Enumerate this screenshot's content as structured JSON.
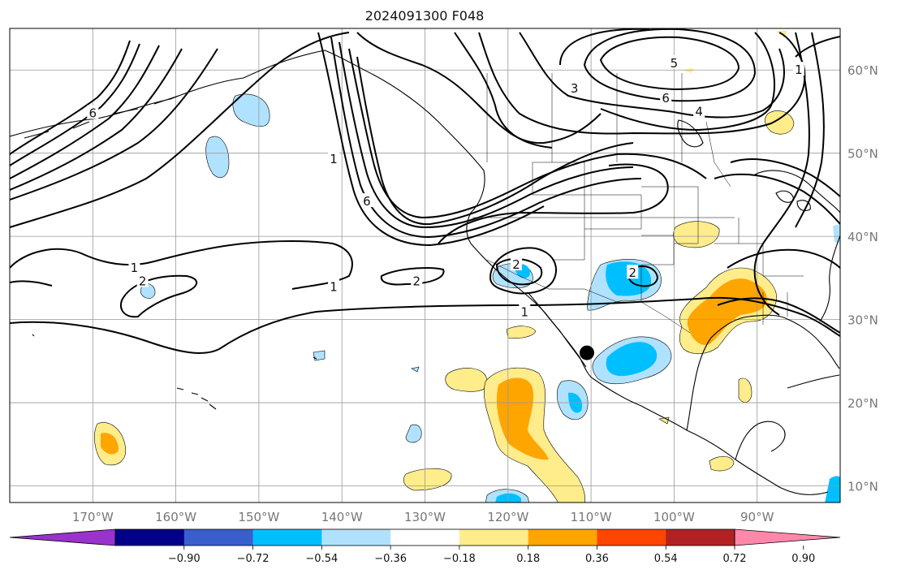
{
  "title": "2024091300 F048",
  "map": {
    "projection": "PlateCarree",
    "lon_range": [
      -180,
      -80
    ],
    "lat_range": [
      8,
      65
    ],
    "lon_ticks": [
      {
        "lon": -170,
        "label": "170°W"
      },
      {
        "lon": -160,
        "label": "160°W"
      },
      {
        "lon": -150,
        "label": "150°W"
      },
      {
        "lon": -140,
        "label": "140°W"
      },
      {
        "lon": -130,
        "label": "130°W"
      },
      {
        "lon": -120,
        "label": "120°W"
      },
      {
        "lon": -110,
        "label": "110°W"
      },
      {
        "lon": -100,
        "label": "100°W"
      },
      {
        "lon": -90,
        "label": "90°W"
      }
    ],
    "lat_ticks": [
      {
        "lat": 10,
        "label": "10°N"
      },
      {
        "lat": 20,
        "label": "20°N"
      },
      {
        "lat": 30,
        "label": "30°N"
      },
      {
        "lat": 40,
        "label": "40°N"
      },
      {
        "lat": 50,
        "label": "50°N"
      },
      {
        "lat": 60,
        "label": "60°N"
      }
    ],
    "gridlines": true,
    "marker": {
      "lon": -110.5,
      "lat": 26,
      "color": "#000000"
    }
  },
  "contour_labels": [
    {
      "text": "6",
      "lon": -170,
      "lat": 54.8
    },
    {
      "text": "1",
      "lon": -165,
      "lat": 36.2
    },
    {
      "text": "2",
      "lon": -164,
      "lat": 34.6
    },
    {
      "text": "2",
      "lon": -131,
      "lat": 34.6
    },
    {
      "text": "1",
      "lon": -141,
      "lat": 33.9
    },
    {
      "text": "1",
      "lon": -141,
      "lat": 49.3
    },
    {
      "text": "6",
      "lon": -137,
      "lat": 44.2
    },
    {
      "text": "2",
      "lon": -119,
      "lat": 36.6
    },
    {
      "text": "2",
      "lon": -105,
      "lat": 35.6
    },
    {
      "text": "1",
      "lon": -118,
      "lat": 30.9
    },
    {
      "text": "5",
      "lon": -100,
      "lat": 60.8
    },
    {
      "text": "3",
      "lon": -112,
      "lat": 57.8
    },
    {
      "text": "6",
      "lon": -101,
      "lat": 56.6
    },
    {
      "text": "4",
      "lon": -97,
      "lat": 55
    },
    {
      "text": "1",
      "lon": -85,
      "lat": 60
    }
  ],
  "colorbar": {
    "ticks": [
      "−0.90",
      "−0.72",
      "−0.54",
      "−0.36",
      "−0.18",
      "0.18",
      "0.36",
      "0.54",
      "0.72",
      "0.90"
    ],
    "colors": [
      "#9933cc",
      "#00008b",
      "#3a5fcd",
      "#00bfff",
      "#b0e2ff",
      "#ffffff",
      "#ffec8b",
      "#ffa500",
      "#ff4500",
      "#b22222",
      "#ff88aa"
    ]
  },
  "shade_colors": {
    "light_blue": "#b0e2ff",
    "blue": "#00bfff",
    "yellow": "#ffec8b",
    "orange": "#ffa500"
  }
}
